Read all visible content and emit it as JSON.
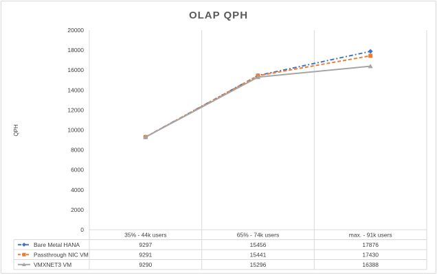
{
  "chart_data": {
    "type": "line",
    "title": "OLAP QPH",
    "ylabel": "QPH",
    "xlabel": "",
    "ylim": [
      0,
      20000
    ],
    "yticks": [
      0,
      2000,
      4000,
      6000,
      8000,
      10000,
      12000,
      14000,
      16000,
      18000,
      20000
    ],
    "grid": "vertical",
    "legend": "bottom-left data table",
    "categories": [
      "35% - 44k users",
      "65% - 74k users",
      "max. - 91k users"
    ],
    "series": [
      {
        "name": "Bare Metal HANA",
        "values": [
          9297,
          15456,
          17876
        ],
        "color": "#4472C4",
        "dash": "dash-dot",
        "marker": "diamond"
      },
      {
        "name": "Passthrough NIC VM",
        "values": [
          9291,
          15441,
          17430
        ],
        "color": "#ED7D31",
        "dash": "dash",
        "marker": "square"
      },
      {
        "name": "VMXNET3 VM",
        "values": [
          9290,
          15296,
          16388
        ],
        "color": "#A5A5A5",
        "dash": "solid",
        "marker": "triangle"
      }
    ]
  }
}
